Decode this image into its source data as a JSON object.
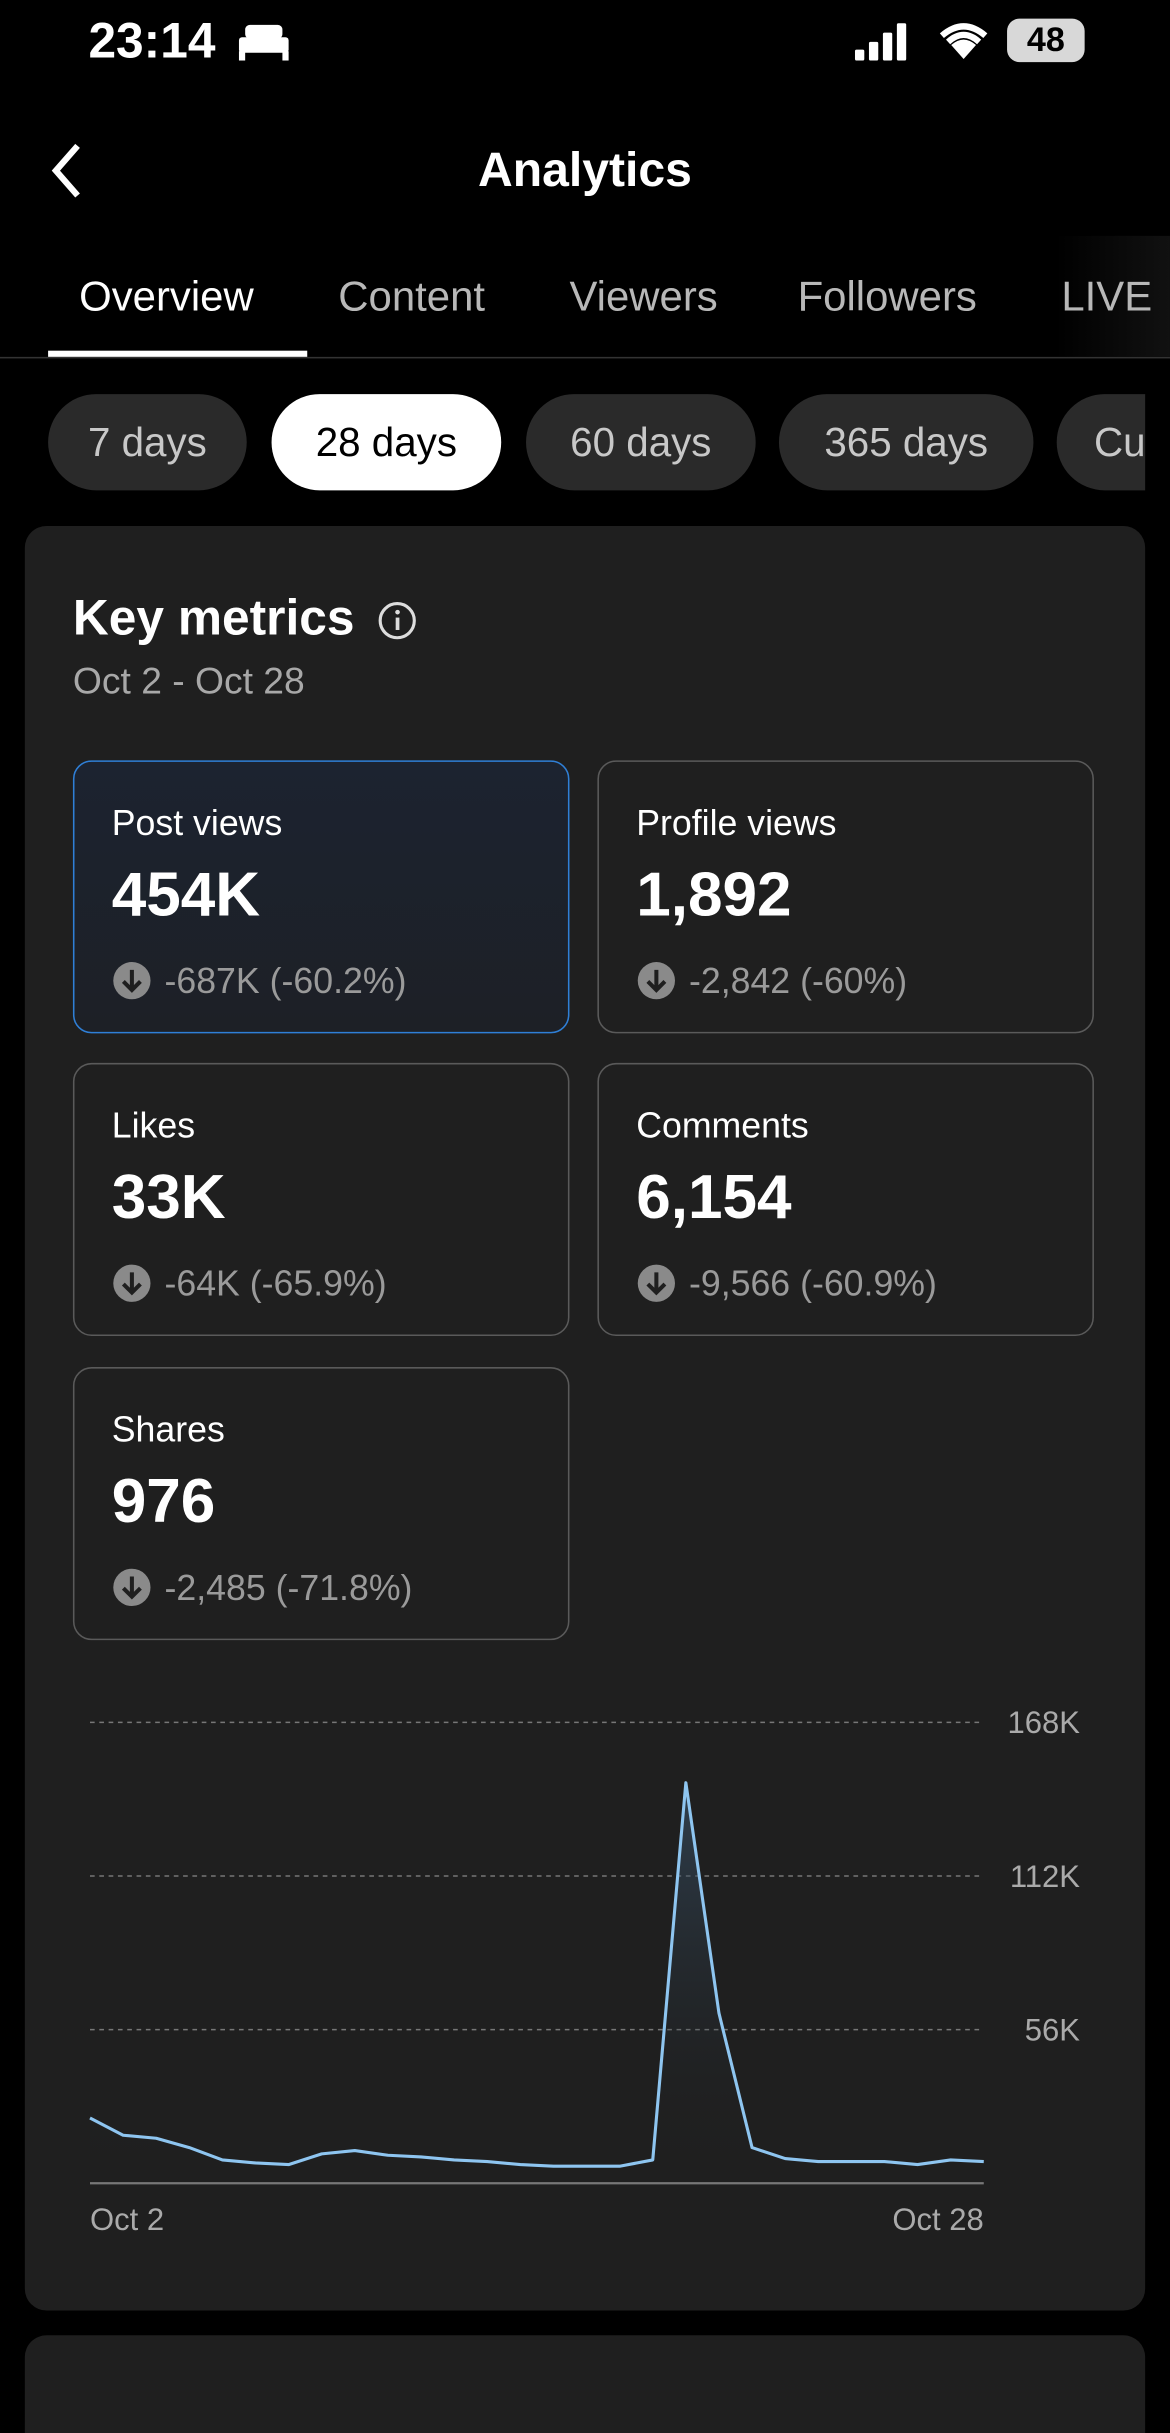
{
  "status": {
    "time": "23:14",
    "battery": "48"
  },
  "header": {
    "title": "Analytics"
  },
  "tabs": [
    "Overview",
    "Content",
    "Viewers",
    "Followers",
    "LIVE"
  ],
  "ranges": [
    "7 days",
    "28 days",
    "60 days",
    "365 days",
    "Cu"
  ],
  "card": {
    "title": "Key metrics",
    "dates": "Oct 2 - Oct 28",
    "metrics": [
      {
        "label": "Post views",
        "value": "454K",
        "change": "-687K (-60.2%)"
      },
      {
        "label": "Profile views",
        "value": "1,892",
        "change": "-2,842 (-60%)"
      },
      {
        "label": "Likes",
        "value": "33K",
        "change": "-64K (-65.9%)"
      },
      {
        "label": "Comments",
        "value": "6,154",
        "change": "-9,566 (-60.9%)"
      },
      {
        "label": "Shares",
        "value": "976",
        "change": "-2,485 (-71.8%)"
      }
    ]
  },
  "chart_data": {
    "type": "line",
    "color": "#8ec5f0",
    "categories": [
      "Oct 2",
      null,
      null,
      null,
      null,
      null,
      null,
      null,
      null,
      null,
      null,
      null,
      null,
      null,
      null,
      null,
      null,
      null,
      null,
      null,
      null,
      null,
      null,
      null,
      null,
      null,
      null,
      "Oct 28"
    ],
    "values": [
      23800,
      17500,
      16400,
      13000,
      8500,
      7400,
      6800,
      10700,
      11900,
      10200,
      9600,
      8500,
      7900,
      6800,
      6200,
      6200,
      6200,
      8500,
      146000,
      62000,
      13000,
      9000,
      7900,
      7900,
      7900,
      6800,
      8500,
      7900
    ],
    "ylim": [
      0,
      168000
    ],
    "yticks": [
      {
        "value": 56000,
        "label": "56K"
      },
      {
        "value": 112000,
        "label": "112K"
      },
      {
        "value": 168000,
        "label": "168K"
      }
    ],
    "grid": true
  }
}
